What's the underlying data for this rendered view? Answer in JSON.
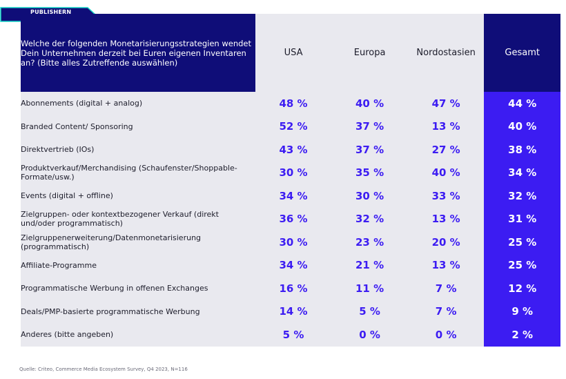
{
  "tag": {
    "label": "PUBLISHERN",
    "color": "#0f0d78",
    "border_color": "#17d7c8"
  },
  "header": {
    "question": "Welche der folgenden Monetarisierungsstrategien wendet Dein Unternehmen derzeit bei Euren eigenen Inventaren an? (Bitte alles Zutreffende auswählen)",
    "columns": [
      "USA",
      "Europa",
      "Nordostasien",
      "Gesamt"
    ]
  },
  "rows": [
    {
      "label": "Abonnements (digital + analog)",
      "values": [
        "48 %",
        "40 %",
        "47 %",
        "44 %"
      ]
    },
    {
      "label": "Branded Content/ Sponsoring",
      "values": [
        "52 %",
        "37 %",
        "13 %",
        "40 %"
      ]
    },
    {
      "label": "Direktvertrieb (IOs)",
      "values": [
        "43 %",
        "37 %",
        "27 %",
        "38 %"
      ]
    },
    {
      "label": "Produktverkauf/Merchandising (Schaufenster/Shoppable-Formate/usw.)",
      "values": [
        "30 %",
        "35 %",
        "40 %",
        "34 %"
      ]
    },
    {
      "label": "Events (digital + offline)",
      "values": [
        "34 %",
        "30 %",
        "33 %",
        "32 %"
      ]
    },
    {
      "label": "Zielgruppen- oder kontextbezogener Verkauf (direkt und/oder programmatisch)",
      "values": [
        "36 %",
        "32 %",
        "13 %",
        "31 %"
      ]
    },
    {
      "label": "Zielgruppenerweiterung/Datenmonetarisierung (programmatisch)",
      "values": [
        "30 %",
        "23 %",
        "20 %",
        "25 %"
      ]
    },
    {
      "label": "Affiliate-Programme",
      "values": [
        "34 %",
        "21 %",
        "13 %",
        "25 %"
      ]
    },
    {
      "label": "Programmatische Werbung in offenen Exchanges",
      "values": [
        "16 %",
        "11 %",
        "7 %",
        "12 %"
      ]
    },
    {
      "label": "Deals/PMP-basierte programmatische Werbung",
      "values": [
        "14 %",
        "5 %",
        "7 %",
        "9 %"
      ]
    },
    {
      "label": "Anderes (bitte angeben)",
      "values": [
        "5 %",
        "0 %",
        "0 %",
        "2 %"
      ]
    }
  ],
  "source": "Quelle: Criteo, Commerce Media Ecosystem Survey, Q4 2023, N=116",
  "colors": {
    "dark_blue": "#0f0d78",
    "accent_blue": "#3c1cf2",
    "cell_gray": "#e9e9ef"
  }
}
